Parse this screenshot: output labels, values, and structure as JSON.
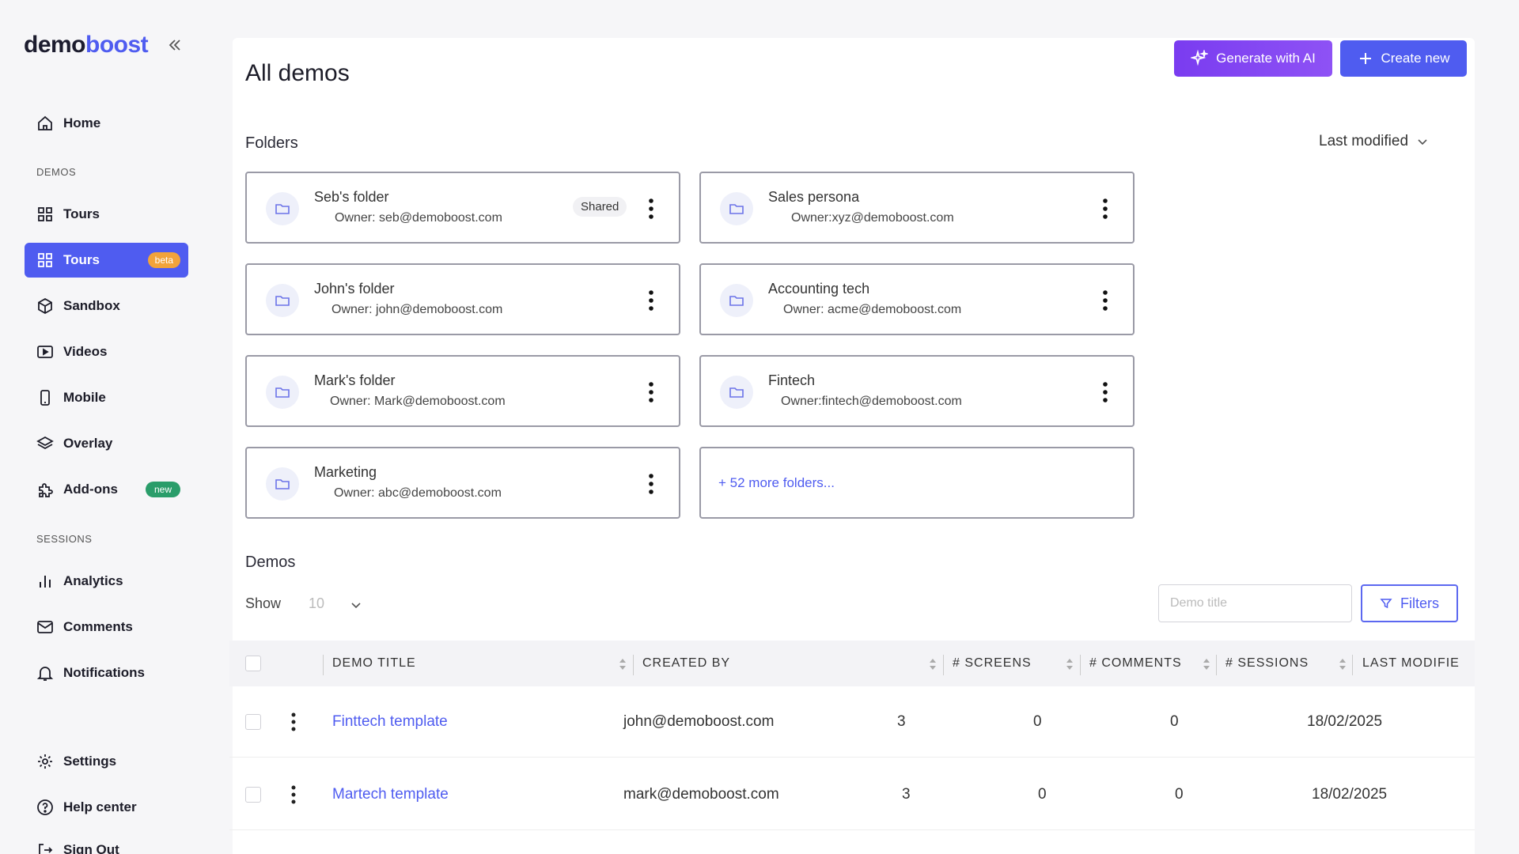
{
  "sidebar": {
    "logo_part1": "demo",
    "logo_part2": "boost",
    "items": [
      {
        "label": "Home"
      },
      {
        "label": "Tours"
      },
      {
        "label": "Tours",
        "badge": "beta"
      },
      {
        "label": "Sandbox"
      },
      {
        "label": "Videos"
      },
      {
        "label": "Mobile"
      },
      {
        "label": "Overlay"
      },
      {
        "label": "Add-ons",
        "badge": "new"
      },
      {
        "label": "Analytics"
      },
      {
        "label": "Comments"
      },
      {
        "label": "Notifications"
      },
      {
        "label": "Settings"
      },
      {
        "label": "Help center"
      },
      {
        "label": "Sign Out"
      }
    ],
    "section_demos": "DEMOS",
    "section_sessions": "SESSIONS"
  },
  "header": {
    "title": "All demos",
    "generate_label": "Generate with AI",
    "create_label": "Create new"
  },
  "folders_section": {
    "title": "Folders",
    "sort_label": "Last modified",
    "folders": [
      {
        "name": "Seb's folder",
        "owner": "Owner: seb@demoboost.com",
        "badge": "Shared"
      },
      {
        "name": "Sales persona",
        "owner": "Owner:xyz@demoboost.com"
      },
      {
        "name": "John's folder",
        "owner": "Owner: john@demoboost.com"
      },
      {
        "name": "Accounting tech",
        "owner": "Owner: acme@demoboost.com"
      },
      {
        "name": "Mark's folder",
        "owner": "Owner: Mark@demoboost.com"
      },
      {
        "name": "Fintech",
        "owner": "Owner:fintech@demoboost.com"
      },
      {
        "name": "Marketing",
        "owner": "Owner: abc@demoboost.com"
      }
    ],
    "more_label": "+ 52 more folders..."
  },
  "demos_section": {
    "title": "Demos",
    "show_label": "Show",
    "show_value": "10",
    "search_placeholder": "Demo title",
    "filters_label": "Filters",
    "columns": [
      "DEMO TITLE",
      "CREATED BY",
      "# SCREENS",
      "# COMMENTS",
      "# SESSIONS",
      "LAST MODIFIE"
    ],
    "rows": [
      {
        "title": "Finttech template",
        "created_by": "john@demoboost.com",
        "screens": "3",
        "comments": "0",
        "sessions": "0",
        "modified": "18/02/2025"
      },
      {
        "title": "Martech template",
        "created_by": "mark@demoboost.com",
        "screens": "3",
        "comments": "0",
        "sessions": "0",
        "modified": "18/02/2025"
      }
    ]
  },
  "colors": {
    "accent": "#4f5cf0",
    "ai_purple": "#8446f2",
    "beta": "#f2a33a",
    "new": "#2a9d6a"
  }
}
